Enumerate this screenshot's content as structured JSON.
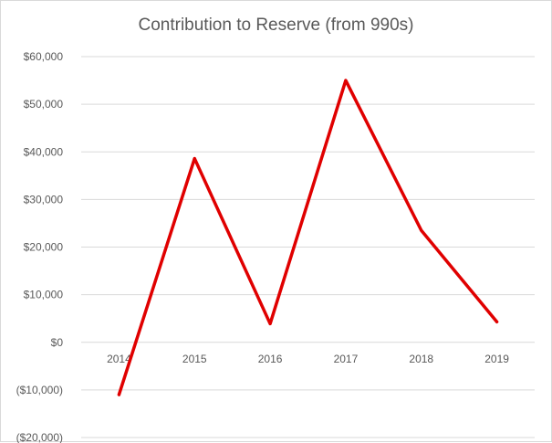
{
  "chart_data": {
    "type": "line",
    "title": "Contribution to Reserve (from 990s)",
    "categories": [
      "2014",
      "2015",
      "2016",
      "2017",
      "2018",
      "2019"
    ],
    "series": [
      {
        "values": [
          -11000,
          38600,
          3900,
          55000,
          23500,
          4300
        ]
      }
    ],
    "ylim": [
      -20000,
      60000
    ],
    "yticks": [
      60000,
      50000,
      40000,
      30000,
      20000,
      10000,
      0,
      -10000,
      -20000
    ],
    "ytick_labels": [
      "$60,000",
      "$50,000",
      "$40,000",
      "$30,000",
      "$20,000",
      "$10,000",
      "$0",
      "($10,000)",
      "($20,000)"
    ],
    "grid": true,
    "legend": "none",
    "line_color": "#e00000",
    "grid_color": "#d9d9d9"
  }
}
